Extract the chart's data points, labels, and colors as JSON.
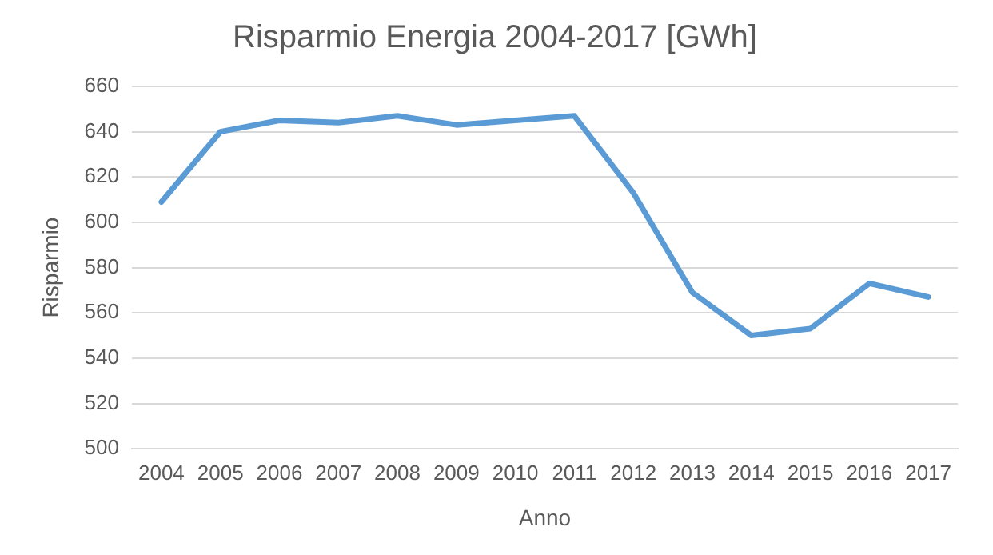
{
  "chart_data": {
    "type": "line",
    "title": "Risparmio Energia 2004-2017 [GWh]",
    "xlabel": "Anno",
    "ylabel": "Risparmio",
    "categories": [
      "2004",
      "2005",
      "2006",
      "2007",
      "2008",
      "2009",
      "2010",
      "2011",
      "2012",
      "2013",
      "2014",
      "2015",
      "2016",
      "2017"
    ],
    "series": [
      {
        "color": "#5b9bd5",
        "values": [
          609,
          640,
          645,
          644,
          647,
          643,
          645,
          647,
          613,
          569,
          550,
          553,
          573,
          567
        ]
      }
    ],
    "ylim": [
      500,
      660
    ],
    "yticks": [
      500,
      520,
      540,
      560,
      580,
      600,
      620,
      640,
      660
    ],
    "grid": "y",
    "legend": false,
    "marker": "none",
    "line_style": "solid"
  }
}
